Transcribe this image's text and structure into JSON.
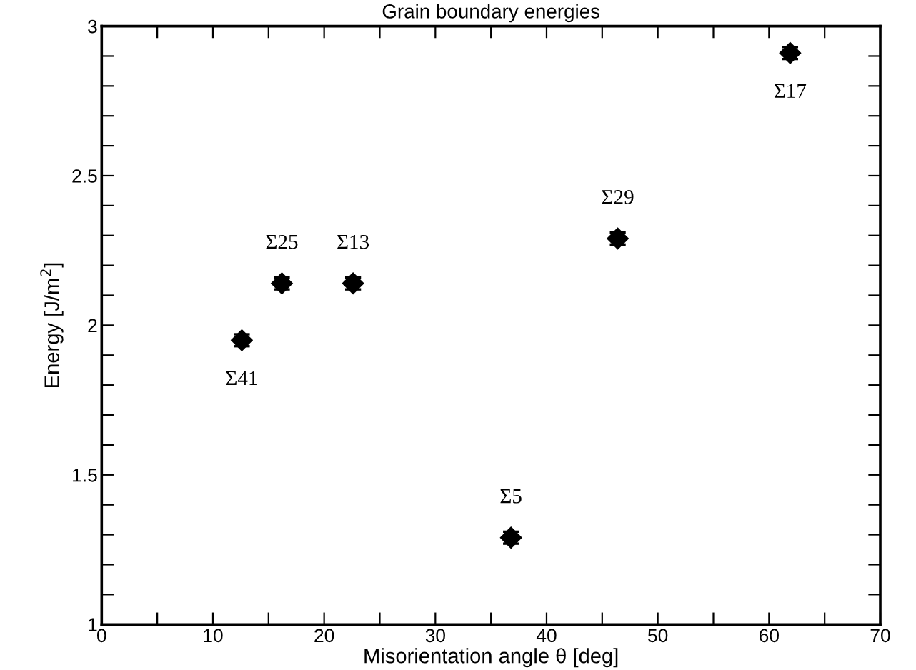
{
  "chart_data": {
    "type": "scatter",
    "title": "Grain boundary energies",
    "xlabel": "Misorientation angle θ [deg]",
    "ylabel": "Energy [J/m$^{2}$]",
    "x": [
      12.6,
      16.2,
      22.6,
      36.8,
      46.4,
      61.9
    ],
    "values": [
      1.95,
      2.14,
      2.14,
      1.29,
      2.29,
      2.91
    ],
    "errors": [
      0.02,
      0.02,
      0.02,
      0.02,
      0.02,
      0.02
    ],
    "color": "#000000",
    "marker": "diamond",
    "grid": false,
    "legend": false,
    "xlim": [
      0,
      70
    ],
    "ylim": [
      1,
      3
    ],
    "xticks": [
      0,
      {
        "value": 5,
        "label": null
      },
      10,
      {
        "value": 15,
        "label": null
      },
      20,
      {
        "value": 25,
        "label": null
      },
      30,
      {
        "value": 35,
        "label": null
      },
      40,
      {
        "value": 45,
        "label": null
      },
      50,
      {
        "value": 55,
        "label": null
      },
      60,
      {
        "value": 65,
        "label": null
      },
      70
    ],
    "yticks": [
      1,
      {
        "value": 1.1,
        "label": null
      },
      {
        "value": 1.2,
        "label": null
      },
      {
        "value": 1.3,
        "label": null
      },
      {
        "value": 1.4,
        "label": null
      },
      1.5,
      {
        "value": 1.6,
        "label": null
      },
      {
        "value": 1.7,
        "label": null
      },
      {
        "value": 1.8,
        "label": null
      },
      {
        "value": 1.9,
        "label": null
      },
      2,
      {
        "value": 2.1,
        "label": null
      },
      {
        "value": 2.2,
        "label": null
      },
      {
        "value": 2.3,
        "label": null
      },
      {
        "value": 2.4,
        "label": null
      },
      2.5,
      {
        "value": 2.6,
        "label": null
      },
      {
        "value": 2.7,
        "label": null
      },
      {
        "value": 2.8,
        "label": null
      },
      {
        "value": 2.9,
        "label": null
      },
      3
    ],
    "annotations": [
      {
        "text": "Σ41",
        "x": 12.6,
        "y": 1.95
      },
      {
        "text": "Σ25",
        "x": 16.2,
        "y": 2.14
      },
      {
        "text": "Σ13",
        "x": 22.6,
        "y": 2.14
      },
      {
        "text": "Σ5",
        "x": 36.8,
        "y": 1.29
      },
      {
        "text": "Σ29",
        "x": 46.4,
        "y": 2.29
      },
      {
        "text": "Σ17",
        "x": 61.9,
        "y": 2.91
      }
    ]
  }
}
